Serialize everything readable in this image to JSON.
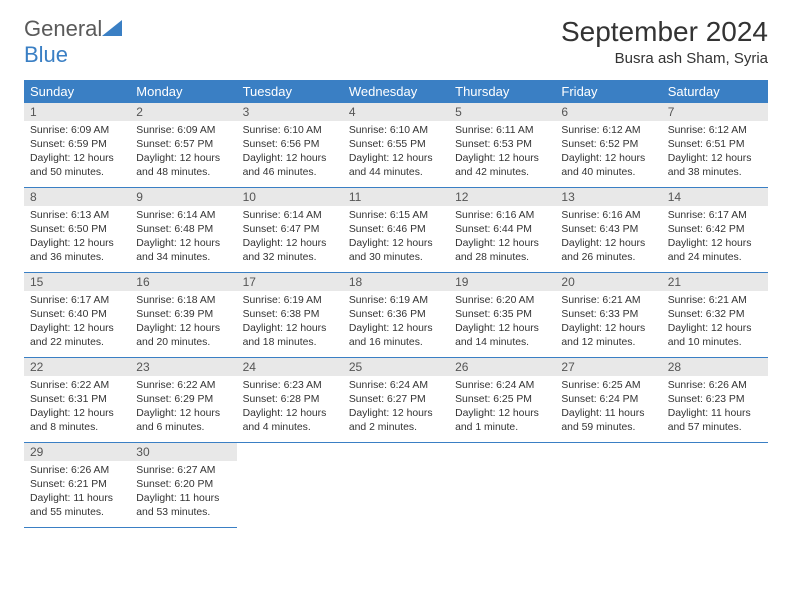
{
  "logo": {
    "text1": "General",
    "text2": "Blue",
    "accent_color": "#3a7fc4",
    "text_color": "#5a5a5a"
  },
  "title": "September 2024",
  "location": "Busra ash Sham, Syria",
  "header_bg": "#3a7fc4",
  "header_fg": "#ffffff",
  "day_number_bg": "#e8e8e8",
  "border_color": "#3a7fc4",
  "weekdays": [
    "Sunday",
    "Monday",
    "Tuesday",
    "Wednesday",
    "Thursday",
    "Friday",
    "Saturday"
  ],
  "days": [
    {
      "n": 1,
      "sr": "6:09 AM",
      "ss": "6:59 PM",
      "dl": "12 hours and 50 minutes."
    },
    {
      "n": 2,
      "sr": "6:09 AM",
      "ss": "6:57 PM",
      "dl": "12 hours and 48 minutes."
    },
    {
      "n": 3,
      "sr": "6:10 AM",
      "ss": "6:56 PM",
      "dl": "12 hours and 46 minutes."
    },
    {
      "n": 4,
      "sr": "6:10 AM",
      "ss": "6:55 PM",
      "dl": "12 hours and 44 minutes."
    },
    {
      "n": 5,
      "sr": "6:11 AM",
      "ss": "6:53 PM",
      "dl": "12 hours and 42 minutes."
    },
    {
      "n": 6,
      "sr": "6:12 AM",
      "ss": "6:52 PM",
      "dl": "12 hours and 40 minutes."
    },
    {
      "n": 7,
      "sr": "6:12 AM",
      "ss": "6:51 PM",
      "dl": "12 hours and 38 minutes."
    },
    {
      "n": 8,
      "sr": "6:13 AM",
      "ss": "6:50 PM",
      "dl": "12 hours and 36 minutes."
    },
    {
      "n": 9,
      "sr": "6:14 AM",
      "ss": "6:48 PM",
      "dl": "12 hours and 34 minutes."
    },
    {
      "n": 10,
      "sr": "6:14 AM",
      "ss": "6:47 PM",
      "dl": "12 hours and 32 minutes."
    },
    {
      "n": 11,
      "sr": "6:15 AM",
      "ss": "6:46 PM",
      "dl": "12 hours and 30 minutes."
    },
    {
      "n": 12,
      "sr": "6:16 AM",
      "ss": "6:44 PM",
      "dl": "12 hours and 28 minutes."
    },
    {
      "n": 13,
      "sr": "6:16 AM",
      "ss": "6:43 PM",
      "dl": "12 hours and 26 minutes."
    },
    {
      "n": 14,
      "sr": "6:17 AM",
      "ss": "6:42 PM",
      "dl": "12 hours and 24 minutes."
    },
    {
      "n": 15,
      "sr": "6:17 AM",
      "ss": "6:40 PM",
      "dl": "12 hours and 22 minutes."
    },
    {
      "n": 16,
      "sr": "6:18 AM",
      "ss": "6:39 PM",
      "dl": "12 hours and 20 minutes."
    },
    {
      "n": 17,
      "sr": "6:19 AM",
      "ss": "6:38 PM",
      "dl": "12 hours and 18 minutes."
    },
    {
      "n": 18,
      "sr": "6:19 AM",
      "ss": "6:36 PM",
      "dl": "12 hours and 16 minutes."
    },
    {
      "n": 19,
      "sr": "6:20 AM",
      "ss": "6:35 PM",
      "dl": "12 hours and 14 minutes."
    },
    {
      "n": 20,
      "sr": "6:21 AM",
      "ss": "6:33 PM",
      "dl": "12 hours and 12 minutes."
    },
    {
      "n": 21,
      "sr": "6:21 AM",
      "ss": "6:32 PM",
      "dl": "12 hours and 10 minutes."
    },
    {
      "n": 22,
      "sr": "6:22 AM",
      "ss": "6:31 PM",
      "dl": "12 hours and 8 minutes."
    },
    {
      "n": 23,
      "sr": "6:22 AM",
      "ss": "6:29 PM",
      "dl": "12 hours and 6 minutes."
    },
    {
      "n": 24,
      "sr": "6:23 AM",
      "ss": "6:28 PM",
      "dl": "12 hours and 4 minutes."
    },
    {
      "n": 25,
      "sr": "6:24 AM",
      "ss": "6:27 PM",
      "dl": "12 hours and 2 minutes."
    },
    {
      "n": 26,
      "sr": "6:24 AM",
      "ss": "6:25 PM",
      "dl": "12 hours and 1 minute."
    },
    {
      "n": 27,
      "sr": "6:25 AM",
      "ss": "6:24 PM",
      "dl": "11 hours and 59 minutes."
    },
    {
      "n": 28,
      "sr": "6:26 AM",
      "ss": "6:23 PM",
      "dl": "11 hours and 57 minutes."
    },
    {
      "n": 29,
      "sr": "6:26 AM",
      "ss": "6:21 PM",
      "dl": "11 hours and 55 minutes."
    },
    {
      "n": 30,
      "sr": "6:27 AM",
      "ss": "6:20 PM",
      "dl": "11 hours and 53 minutes."
    }
  ],
  "labels": {
    "sunrise": "Sunrise:",
    "sunset": "Sunset:",
    "daylight": "Daylight:"
  }
}
